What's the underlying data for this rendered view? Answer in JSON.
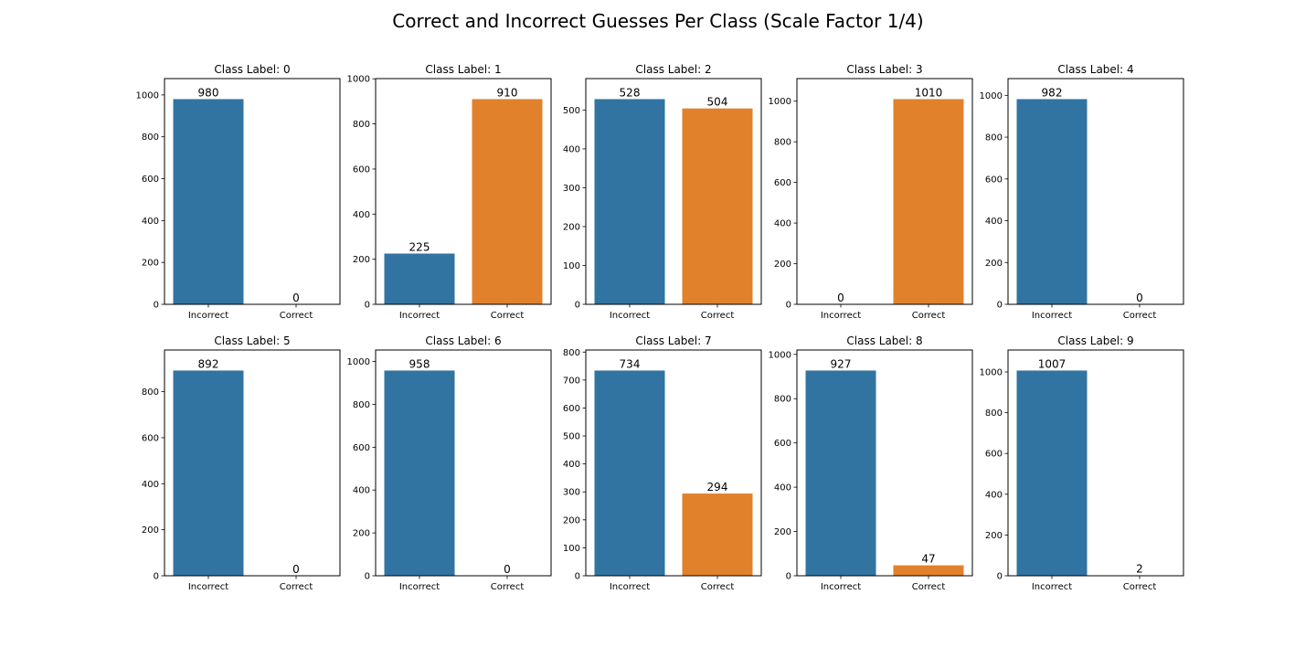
{
  "figure": {
    "title": "Correct and Incorrect Guesses Per Class (Scale Factor 1/4)"
  },
  "colors": {
    "Incorrect": "#3274a1",
    "Correct": "#e1812c"
  },
  "chart_data": [
    {
      "type": "bar",
      "title": "Class Label: 0",
      "categories": [
        "Incorrect",
        "Correct"
      ],
      "values": [
        980,
        0
      ],
      "data_labels": [
        "980",
        "0"
      ],
      "ylim": [
        0,
        1078
      ],
      "yticks": [
        0,
        200,
        400,
        600,
        800,
        1000
      ],
      "xlabel": "",
      "ylabel": "",
      "grid": false
    },
    {
      "type": "bar",
      "title": "Class Label: 1",
      "categories": [
        "Incorrect",
        "Correct"
      ],
      "values": [
        225,
        910
      ],
      "data_labels": [
        "225",
        "910"
      ],
      "ylim": [
        0,
        1001
      ],
      "yticks": [
        0,
        200,
        400,
        600,
        800,
        1000
      ],
      "xlabel": "",
      "ylabel": "",
      "grid": false
    },
    {
      "type": "bar",
      "title": "Class Label: 2",
      "categories": [
        "Incorrect",
        "Correct"
      ],
      "values": [
        528,
        504
      ],
      "data_labels": [
        "528",
        "504"
      ],
      "ylim": [
        0,
        580.8
      ],
      "yticks": [
        0,
        100,
        200,
        300,
        400,
        500
      ],
      "xlabel": "",
      "ylabel": "",
      "grid": false
    },
    {
      "type": "bar",
      "title": "Class Label: 3",
      "categories": [
        "Incorrect",
        "Correct"
      ],
      "values": [
        0,
        1010
      ],
      "data_labels": [
        "0",
        "1010"
      ],
      "ylim": [
        0,
        1111
      ],
      "yticks": [
        0,
        200,
        400,
        600,
        800,
        1000
      ],
      "xlabel": "",
      "ylabel": "",
      "grid": false
    },
    {
      "type": "bar",
      "title": "Class Label: 4",
      "categories": [
        "Incorrect",
        "Correct"
      ],
      "values": [
        982,
        0
      ],
      "data_labels": [
        "982",
        "0"
      ],
      "ylim": [
        0,
        1080.2
      ],
      "yticks": [
        0,
        200,
        400,
        600,
        800,
        1000
      ],
      "xlabel": "",
      "ylabel": "",
      "grid": false
    },
    {
      "type": "bar",
      "title": "Class Label: 5",
      "categories": [
        "Incorrect",
        "Correct"
      ],
      "values": [
        892,
        0
      ],
      "data_labels": [
        "892",
        "0"
      ],
      "ylim": [
        0,
        981.2
      ],
      "yticks": [
        0,
        200,
        400,
        600,
        800
      ],
      "xlabel": "",
      "ylabel": "",
      "grid": false
    },
    {
      "type": "bar",
      "title": "Class Label: 6",
      "categories": [
        "Incorrect",
        "Correct"
      ],
      "values": [
        958,
        0
      ],
      "data_labels": [
        "958",
        "0"
      ],
      "ylim": [
        0,
        1053.8
      ],
      "yticks": [
        0,
        200,
        400,
        600,
        800,
        1000
      ],
      "xlabel": "",
      "ylabel": "",
      "grid": false
    },
    {
      "type": "bar",
      "title": "Class Label: 7",
      "categories": [
        "Incorrect",
        "Correct"
      ],
      "values": [
        734,
        294
      ],
      "data_labels": [
        "734",
        "294"
      ],
      "ylim": [
        0,
        807.4
      ],
      "yticks": [
        0,
        100,
        200,
        300,
        400,
        500,
        600,
        700,
        800
      ],
      "xlabel": "",
      "ylabel": "",
      "grid": false
    },
    {
      "type": "bar",
      "title": "Class Label: 8",
      "categories": [
        "Incorrect",
        "Correct"
      ],
      "values": [
        927,
        47
      ],
      "data_labels": [
        "927",
        "47"
      ],
      "ylim": [
        0,
        1019.7
      ],
      "yticks": [
        0,
        200,
        400,
        600,
        800,
        1000
      ],
      "xlabel": "",
      "ylabel": "",
      "grid": false
    },
    {
      "type": "bar",
      "title": "Class Label: 9",
      "categories": [
        "Incorrect",
        "Correct"
      ],
      "values": [
        1007,
        2
      ],
      "data_labels": [
        "1007",
        "2"
      ],
      "ylim": [
        0,
        1107.7
      ],
      "yticks": [
        0,
        200,
        400,
        600,
        800,
        1000
      ],
      "xlabel": "",
      "ylabel": "",
      "grid": false
    }
  ]
}
